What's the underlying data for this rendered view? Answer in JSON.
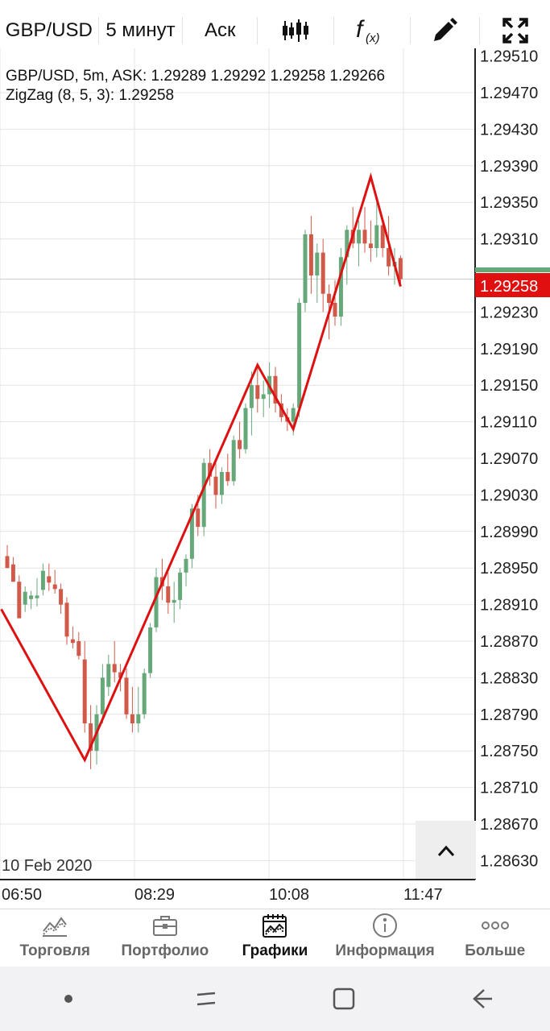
{
  "toolbar": {
    "symbol": "GBP/USD",
    "timeframe": "5 минут",
    "price_type": "Аск",
    "candles_icon": "candlestick-icon",
    "indicator_icon": "function-icon",
    "draw_icon": "pencil-icon",
    "fullscreen_icon": "expand-icon"
  },
  "chart": {
    "info_line": "GBP/USD, 5m, ASK: 1.29289 1.29292 1.29258 1.29266",
    "indicator_line": "ZigZag (8, 5, 3): 1.29258",
    "date_label": "10 Feb 2020",
    "current_price": "1.29258",
    "price_labels": [
      "1.29510",
      "1.29470",
      "1.29430",
      "1.29390",
      "1.29350",
      "1.29310",
      "1.29230",
      "1.29190",
      "1.29150",
      "1.29110",
      "1.29070",
      "1.29030",
      "1.28990",
      "1.28950",
      "1.28910",
      "1.28870",
      "1.28830",
      "1.28790",
      "1.28750",
      "1.28710",
      "1.28670",
      "1.28630"
    ],
    "time_labels": [
      "06:50",
      "08:29",
      "10:08",
      "11:47"
    ],
    "colors": {
      "up": "#66a87a",
      "down": "#d05a4a",
      "zigzag": "#dd1111",
      "price_tag": "#e01010",
      "grid": "#e4e4e4"
    }
  },
  "chart_data": {
    "type": "candlestick",
    "title": "GBP/USD, 5m, ASK",
    "ylim": [
      1.286,
      1.2953
    ],
    "x_ticks": [
      "06:50",
      "08:29",
      "10:08",
      "11:47"
    ],
    "candles": [
      {
        "o": 1.28963,
        "h": 1.28975,
        "l": 1.2895,
        "c": 1.2895
      },
      {
        "o": 1.28954,
        "h": 1.28962,
        "l": 1.28935,
        "c": 1.28935
      },
      {
        "o": 1.28935,
        "h": 1.28942,
        "l": 1.28895,
        "c": 1.28895
      },
      {
        "o": 1.2891,
        "h": 1.2893,
        "l": 1.28902,
        "c": 1.28924
      },
      {
        "o": 1.28916,
        "h": 1.28925,
        "l": 1.28905,
        "c": 1.2892
      },
      {
        "o": 1.28917,
        "h": 1.28939,
        "l": 1.28908,
        "c": 1.2892
      },
      {
        "o": 1.28926,
        "h": 1.28955,
        "l": 1.2892,
        "c": 1.28947
      },
      {
        "o": 1.28941,
        "h": 1.28955,
        "l": 1.28925,
        "c": 1.28934
      },
      {
        "o": 1.28932,
        "h": 1.28948,
        "l": 1.28922,
        "c": 1.28927
      },
      {
        "o": 1.28927,
        "h": 1.28933,
        "l": 1.289,
        "c": 1.2891
      },
      {
        "o": 1.28912,
        "h": 1.28918,
        "l": 1.28866,
        "c": 1.28875
      },
      {
        "o": 1.28872,
        "h": 1.28886,
        "l": 1.28862,
        "c": 1.28868
      },
      {
        "o": 1.2887,
        "h": 1.2888,
        "l": 1.2885,
        "c": 1.28854
      },
      {
        "o": 1.2885,
        "h": 1.2887,
        "l": 1.2877,
        "c": 1.2878
      },
      {
        "o": 1.2878,
        "h": 1.288,
        "l": 1.2873,
        "c": 1.2875
      },
      {
        "o": 1.2875,
        "h": 1.288,
        "l": 1.28735,
        "c": 1.2879
      },
      {
        "o": 1.2879,
        "h": 1.28845,
        "l": 1.2878,
        "c": 1.2883
      },
      {
        "o": 1.2882,
        "h": 1.28855,
        "l": 1.2881,
        "c": 1.28845
      },
      {
        "o": 1.28845,
        "h": 1.2887,
        "l": 1.28825,
        "c": 1.28836
      },
      {
        "o": 1.28836,
        "h": 1.28845,
        "l": 1.28815,
        "c": 1.2883
      },
      {
        "o": 1.2883,
        "h": 1.2884,
        "l": 1.28785,
        "c": 1.2879
      },
      {
        "o": 1.2879,
        "h": 1.2882,
        "l": 1.2877,
        "c": 1.2878
      },
      {
        "o": 1.2878,
        "h": 1.2882,
        "l": 1.2877,
        "c": 1.2879
      },
      {
        "o": 1.2879,
        "h": 1.2884,
        "l": 1.28785,
        "c": 1.28835
      },
      {
        "o": 1.28835,
        "h": 1.2889,
        "l": 1.2883,
        "c": 1.28885
      },
      {
        "o": 1.28885,
        "h": 1.2895,
        "l": 1.2888,
        "c": 1.2894
      },
      {
        "o": 1.2894,
        "h": 1.2896,
        "l": 1.28915,
        "c": 1.2893
      },
      {
        "o": 1.2893,
        "h": 1.28945,
        "l": 1.289,
        "c": 1.28912
      },
      {
        "o": 1.28912,
        "h": 1.28935,
        "l": 1.2889,
        "c": 1.28915
      },
      {
        "o": 1.28915,
        "h": 1.2895,
        "l": 1.28905,
        "c": 1.28945
      },
      {
        "o": 1.28945,
        "h": 1.28965,
        "l": 1.2893,
        "c": 1.2896
      },
      {
        "o": 1.2896,
        "h": 1.2902,
        "l": 1.2895,
        "c": 1.29015
      },
      {
        "o": 1.29015,
        "h": 1.2903,
        "l": 1.28985,
        "c": 1.28995
      },
      {
        "o": 1.28995,
        "h": 1.2907,
        "l": 1.28985,
        "c": 1.29065
      },
      {
        "o": 1.29065,
        "h": 1.2908,
        "l": 1.2904,
        "c": 1.2905
      },
      {
        "o": 1.2905,
        "h": 1.29065,
        "l": 1.29015,
        "c": 1.2903
      },
      {
        "o": 1.2903,
        "h": 1.2906,
        "l": 1.2902,
        "c": 1.29055
      },
      {
        "o": 1.29055,
        "h": 1.29075,
        "l": 1.2904,
        "c": 1.29045
      },
      {
        "o": 1.29045,
        "h": 1.29095,
        "l": 1.2904,
        "c": 1.2909
      },
      {
        "o": 1.2909,
        "h": 1.2911,
        "l": 1.2907,
        "c": 1.2908
      },
      {
        "o": 1.2908,
        "h": 1.2913,
        "l": 1.29075,
        "c": 1.29125
      },
      {
        "o": 1.29125,
        "h": 1.29165,
        "l": 1.29095,
        "c": 1.2915
      },
      {
        "o": 1.2915,
        "h": 1.2917,
        "l": 1.2912,
        "c": 1.29135
      },
      {
        "o": 1.29135,
        "h": 1.29155,
        "l": 1.29115,
        "c": 1.2914
      },
      {
        "o": 1.2914,
        "h": 1.29175,
        "l": 1.29125,
        "c": 1.2916
      },
      {
        "o": 1.2916,
        "h": 1.2917,
        "l": 1.2912,
        "c": 1.2913
      },
      {
        "o": 1.2913,
        "h": 1.2914,
        "l": 1.2911,
        "c": 1.29115
      },
      {
        "o": 1.29115,
        "h": 1.29125,
        "l": 1.291,
        "c": 1.2911
      },
      {
        "o": 1.2911,
        "h": 1.2913,
        "l": 1.29095,
        "c": 1.29125
      },
      {
        "o": 1.29125,
        "h": 1.29245,
        "l": 1.29115,
        "c": 1.2924
      },
      {
        "o": 1.2924,
        "h": 1.2932,
        "l": 1.2923,
        "c": 1.29315
      },
      {
        "o": 1.29315,
        "h": 1.29335,
        "l": 1.2925,
        "c": 1.2927
      },
      {
        "o": 1.2927,
        "h": 1.29305,
        "l": 1.2924,
        "c": 1.29295
      },
      {
        "o": 1.29295,
        "h": 1.2931,
        "l": 1.2923,
        "c": 1.2925
      },
      {
        "o": 1.2925,
        "h": 1.2926,
        "l": 1.292,
        "c": 1.2924
      },
      {
        "o": 1.2924,
        "h": 1.29265,
        "l": 1.29215,
        "c": 1.29225
      },
      {
        "o": 1.29225,
        "h": 1.293,
        "l": 1.29215,
        "c": 1.2929
      },
      {
        "o": 1.2929,
        "h": 1.29325,
        "l": 1.2926,
        "c": 1.2932
      },
      {
        "o": 1.2932,
        "h": 1.29345,
        "l": 1.293,
        "c": 1.29305
      },
      {
        "o": 1.29305,
        "h": 1.2933,
        "l": 1.2928,
        "c": 1.2932
      },
      {
        "o": 1.2932,
        "h": 1.29345,
        "l": 1.29295,
        "c": 1.29305
      },
      {
        "o": 1.29305,
        "h": 1.2933,
        "l": 1.29285,
        "c": 1.293
      },
      {
        "o": 1.293,
        "h": 1.2935,
        "l": 1.2929,
        "c": 1.29325
      },
      {
        "o": 1.29325,
        "h": 1.2933,
        "l": 1.2929,
        "c": 1.293
      },
      {
        "o": 1.293,
        "h": 1.29335,
        "l": 1.2927,
        "c": 1.2928
      },
      {
        "o": 1.2928,
        "h": 1.293,
        "l": 1.2926,
        "c": 1.29285
      },
      {
        "o": 1.29289,
        "h": 1.29292,
        "l": 1.29258,
        "c": 1.29266
      }
    ],
    "zigzag": [
      {
        "i": -1,
        "price": 1.28905
      },
      {
        "i": 13,
        "price": 1.2874
      },
      {
        "i": 42,
        "price": 1.29172
      },
      {
        "i": 48,
        "price": 1.29102
      },
      {
        "i": 61,
        "price": 1.29378
      },
      {
        "i": 66,
        "price": 1.29258
      }
    ]
  },
  "scroll_button": {
    "icon": "chevron-up-icon"
  },
  "nav": {
    "items": [
      {
        "label": "Торговля",
        "icon": "trade-chart-icon"
      },
      {
        "label": "Портфолио",
        "icon": "briefcase-icon"
      },
      {
        "label": "Графики",
        "icon": "calendar-chart-icon"
      },
      {
        "label": "Информация",
        "icon": "info-icon"
      },
      {
        "label": "Больше",
        "icon": "more-dots-icon"
      }
    ]
  },
  "system_nav": {
    "icons": [
      "dot-icon",
      "recents-icon",
      "home-icon",
      "back-icon"
    ]
  }
}
